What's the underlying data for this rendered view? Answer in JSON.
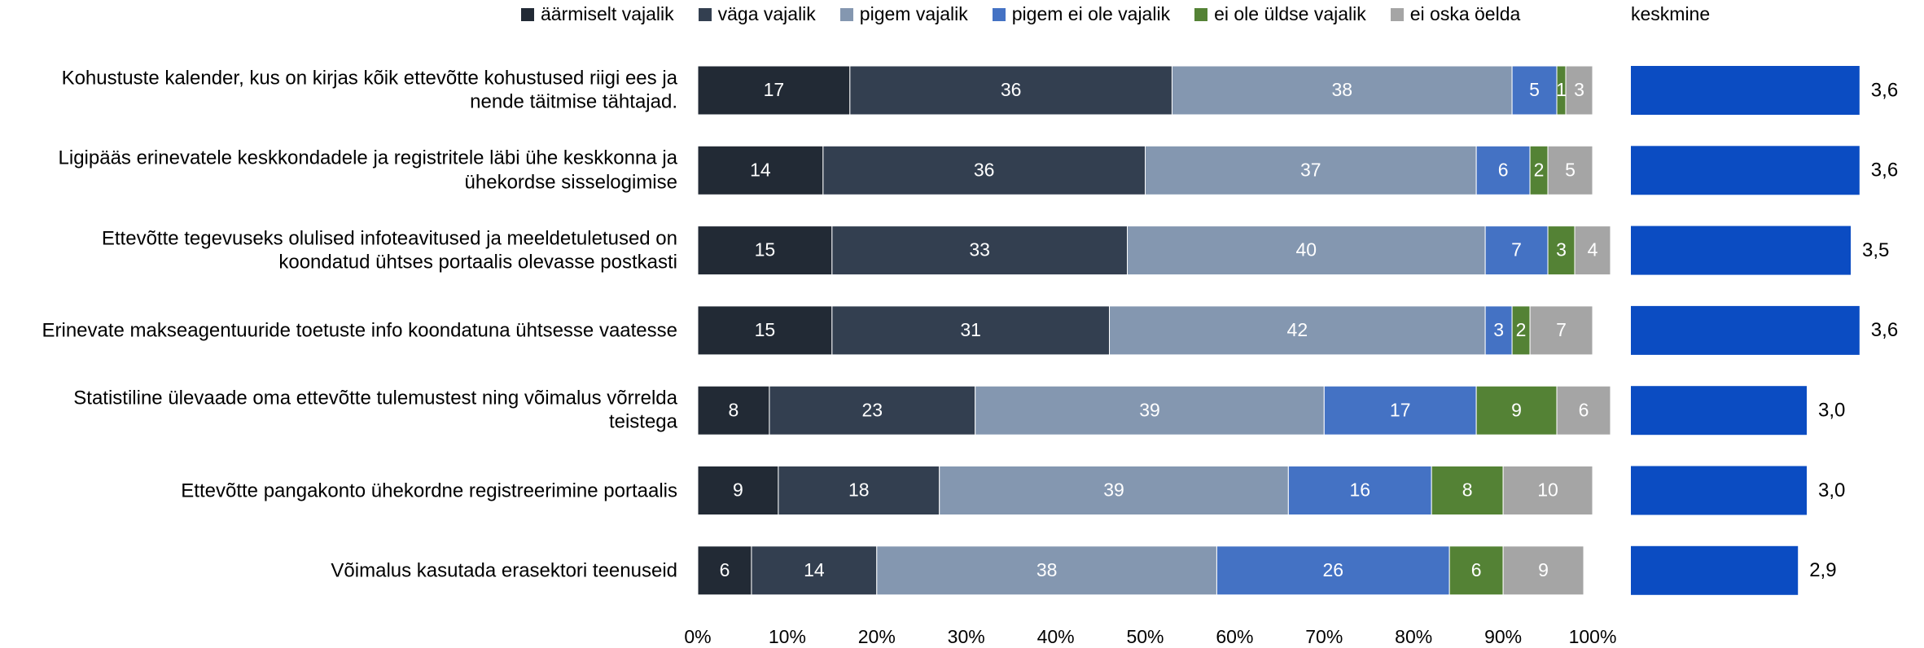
{
  "chart_data": [
    {
      "type": "bar",
      "orientation": "horizontal",
      "stacked": true,
      "categories": [
        "Kohustuste kalender, kus on kirjas kõik ettevõtte kohustused riigi ees ja nende täitmise tähtajad.",
        "Ligipääs erinevatele keskkondadele ja registritele läbi ühe keskkonna ja ühekordse sisselogimise",
        "Ettevõtte tegevuseks olulised infoteavitused ja meeldetuletused on koondatud ühtses portaalis olevasse postkasti",
        "Erinevate makseagentuuride toetuste info koondatuna ühtsesse vaatesse",
        "Statistiline ülevaade oma ettevõtte tulemustest ning võimalus võrrelda teistega",
        "Ettevõtte pangakonto ühekordne registreerimine portaalis",
        "Võimalus kasutada erasektori teenuseid"
      ],
      "series": [
        {
          "name": "äärmiselt vajalik",
          "color": "#222a35",
          "values": [
            17,
            14,
            15,
            15,
            8,
            9,
            6
          ]
        },
        {
          "name": "väga vajalik",
          "color": "#333f50",
          "values": [
            36,
            36,
            33,
            31,
            23,
            18,
            14
          ]
        },
        {
          "name": "pigem vajalik",
          "color": "#8497b0",
          "values": [
            38,
            37,
            40,
            42,
            39,
            39,
            38
          ]
        },
        {
          "name": "pigem ei ole vajalik",
          "color": "#4472c4",
          "values": [
            5,
            6,
            7,
            3,
            17,
            16,
            26
          ]
        },
        {
          "name": "ei ole üldse vajalik",
          "color": "#548235",
          "values": [
            1,
            2,
            3,
            2,
            9,
            8,
            6
          ]
        },
        {
          "name": "ei oska öelda",
          "color": "#a5a5a5",
          "values": [
            3,
            5,
            4,
            7,
            6,
            10,
            9
          ]
        }
      ],
      "xlim": [
        0,
        100
      ],
      "xticks": [
        {
          "value": 0,
          "label": "0%"
        },
        {
          "value": 10,
          "label": "10%"
        },
        {
          "value": 20,
          "label": "20%"
        },
        {
          "value": 30,
          "label": "30%"
        },
        {
          "value": 40,
          "label": "40%"
        },
        {
          "value": 50,
          "label": "50%"
        },
        {
          "value": 60,
          "label": "60%"
        },
        {
          "value": 70,
          "label": "70%"
        },
        {
          "value": 80,
          "label": "80%"
        },
        {
          "value": 90,
          "label": "90%"
        },
        {
          "value": 100,
          "label": "100%"
        }
      ]
    },
    {
      "type": "bar",
      "orientation": "horizontal",
      "title": "keskmine",
      "color": "#0b4cc2",
      "values": [
        3.6,
        3.6,
        3.5,
        3.6,
        3.0,
        3.0,
        2.9
      ],
      "value_labels": [
        "3,6",
        "3,6",
        "3,5",
        "3,6",
        "3,0",
        "3,0",
        "2,9"
      ],
      "xlim": [
        1,
        4
      ]
    }
  ]
}
